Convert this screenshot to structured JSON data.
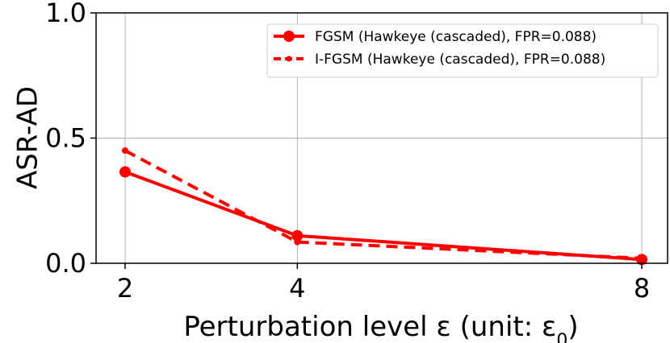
{
  "chart_data": {
    "type": "line",
    "x": [
      2,
      4,
      8
    ],
    "x_tick_labels": [
      "2",
      "4",
      "8"
    ],
    "y_tick_labels": [
      "0.0",
      "0.5",
      "1.0"
    ],
    "xlabel": "Perturbation level ε (unit: ε",
    "xlabel_subscript": "0",
    "xlabel_close": ")",
    "ylabel": "ASR-AD",
    "ylim": [
      0,
      1
    ],
    "grid": true,
    "legend_position": "top-right",
    "series": [
      {
        "name": "FGSM (Hawkeye (cascaded), FPR=0.088)",
        "values": [
          0.365,
          0.11,
          0.015
        ],
        "style": "solid",
        "color": "#ff0000",
        "marker": "circle-large"
      },
      {
        "name": "I-FGSM (Hawkeye (cascaded), FPR=0.088)",
        "values": [
          0.45,
          0.085,
          0.02
        ],
        "style": "dashed",
        "color": "#ff0000",
        "marker": "circle-small"
      }
    ]
  }
}
